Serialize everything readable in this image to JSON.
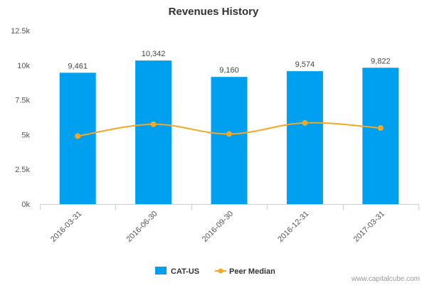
{
  "chart_data": {
    "type": "bar",
    "title": "Revenues History",
    "categories": [
      "2016-03-31",
      "2016-06-30",
      "2016-09-30",
      "2016-12-31",
      "2017-03-31"
    ],
    "series": [
      {
        "name": "CAT-US",
        "type": "bar",
        "values": [
          9461,
          10342,
          9160,
          9574,
          9822
        ],
        "color": "#00a0f0"
      },
      {
        "name": "Peer Median",
        "type": "line",
        "values": [
          4900,
          5750,
          5050,
          5850,
          5480
        ],
        "color": "#f5a623"
      }
    ],
    "data_labels": [
      "9,461",
      "10,342",
      "9,160",
      "9,574",
      "9,822"
    ],
    "ylim": [
      0,
      12500
    ],
    "yticks": [
      0,
      2500,
      5000,
      7500,
      10000,
      12500
    ],
    "ytick_labels": [
      "0k",
      "2.5k",
      "5k",
      "7.5k",
      "10k",
      "12.5k"
    ],
    "xlabel": "",
    "ylabel": "",
    "legend_position": "bottom-center",
    "grid": false
  },
  "watermark": "www.capitalcube.com"
}
